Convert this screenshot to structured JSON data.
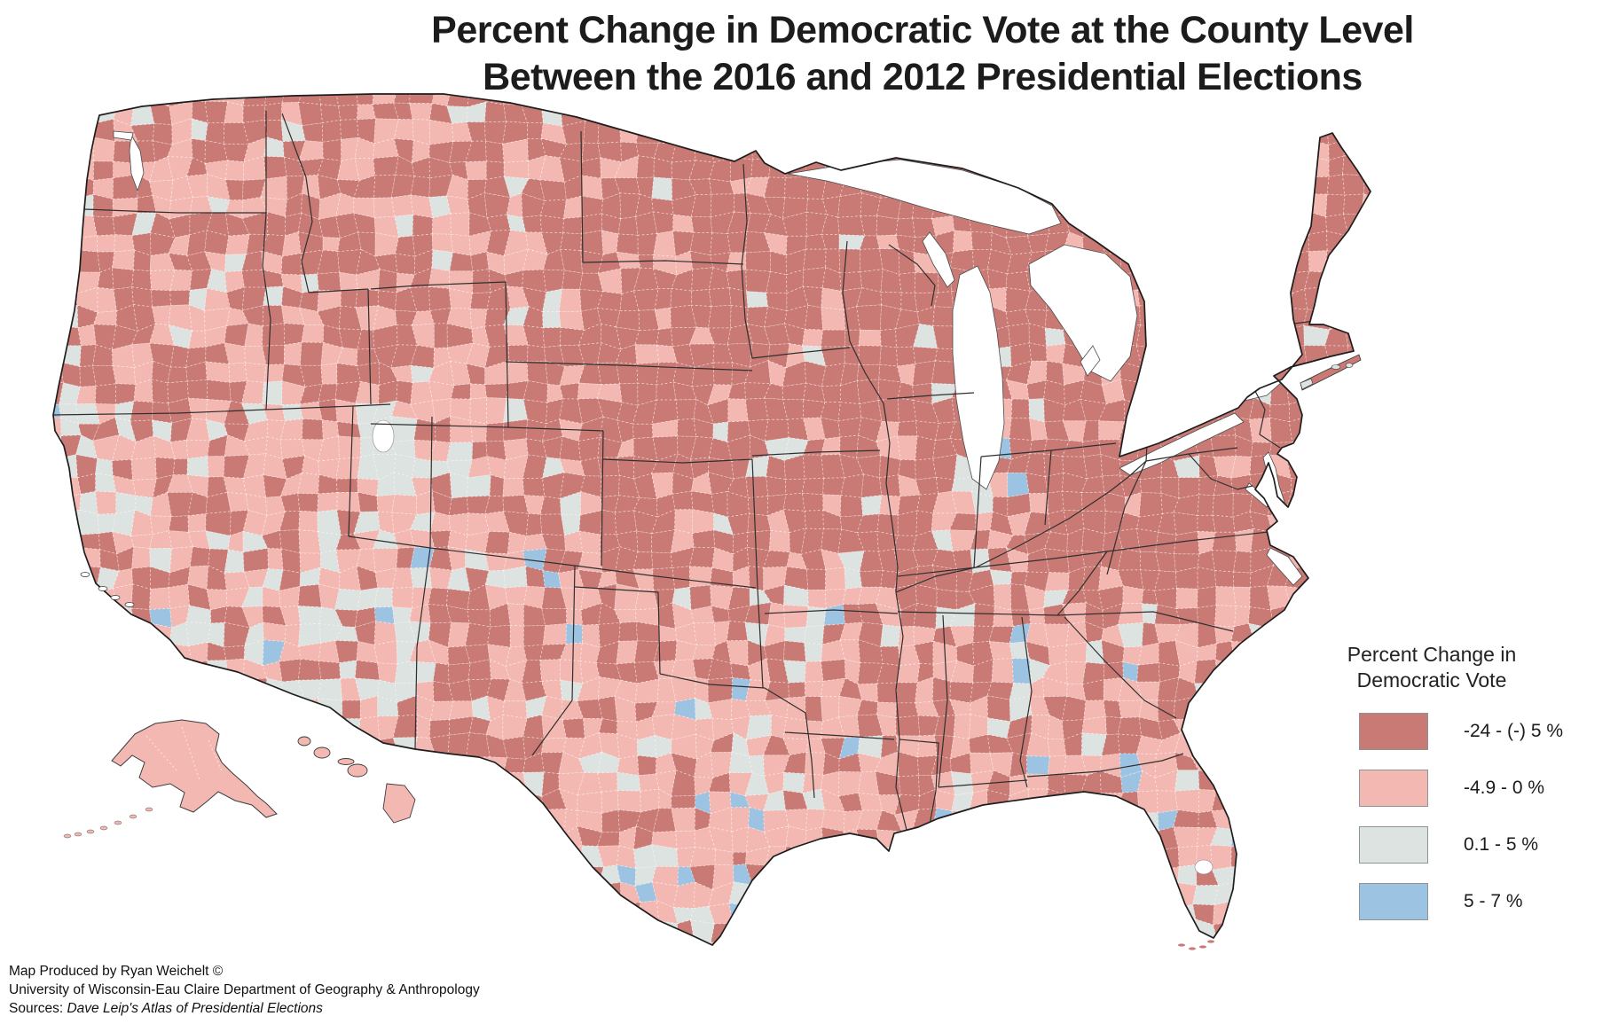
{
  "page": {
    "background_color": "#ffffff"
  },
  "title": {
    "line1": "Percent Change in Democratic Vote at the County Level",
    "line2": "Between the 2016 and 2012 Presidential Elections"
  },
  "map": {
    "type": "choropleth",
    "region": "United States, county level",
    "insets": [
      "Alaska",
      "Hawaii"
    ],
    "county_border_color": "#ffffff",
    "state_border_color": "#333333",
    "ocean_color": "#ffffff"
  },
  "legend": {
    "title_line1": "Percent Change in",
    "title_line2": "Democratic Vote",
    "items": [
      {
        "name": "decrease-large",
        "label": "-24 - (-) 5 %",
        "color": "#c97a74"
      },
      {
        "name": "decrease-small",
        "label": "-4.9 - 0 %",
        "color": "#f4b8b2"
      },
      {
        "name": "increase-small",
        "label": "0.1 - 5 %",
        "color": "#dce3e1"
      },
      {
        "name": "increase-large",
        "label": "5 - 7 %",
        "color": "#9dc3e2"
      }
    ]
  },
  "credits": {
    "line1": "Map Produced by Ryan Weichelt ©",
    "line2": "University of Wisconsin-Eau Claire Department of Geography & Anthropology",
    "line3_prefix": "Sources: ",
    "line3_source": "Dave Leip's Atlas of Presidential Elections"
  },
  "chart_data": {
    "type": "choropleth",
    "geography": "US counties",
    "metric": "Percent change in Democratic vote between the 2016 and 2012 presidential elections",
    "unit": "%",
    "legend_position": "right",
    "classes": [
      {
        "range": "-24 - (-) 5 %",
        "color": "#c97a74"
      },
      {
        "range": "-4.9 - 0 %",
        "color": "#f4b8b2"
      },
      {
        "range": "0.1 - 5 %",
        "color": "#dce3e1"
      },
      {
        "range": "5 - 7 %",
        "color": "#9dc3e2"
      }
    ]
  }
}
